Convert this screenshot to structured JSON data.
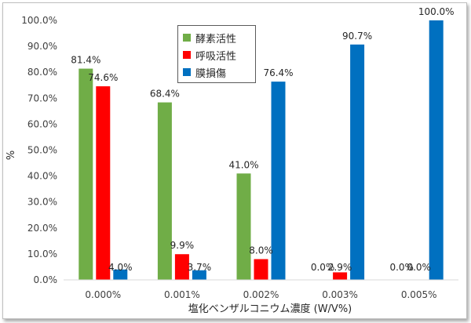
{
  "chart_data": {
    "type": "bar",
    "categories": [
      "0.000%",
      "0.001%",
      "0.002%",
      "0.003%",
      "0.005%"
    ],
    "series": [
      {
        "name": "酵素活性",
        "color": "#70ad47",
        "values": [
          81.4,
          68.4,
          41.0,
          0.0,
          0.0
        ],
        "labels": [
          "81.4%",
          "68.4%",
          "41.0%",
          "0.0%",
          "0.0%"
        ]
      },
      {
        "name": "呼吸活性",
        "color": "#ff0000",
        "values": [
          74.6,
          9.9,
          8.0,
          2.9,
          0.0
        ],
        "labels": [
          "74.6%",
          "9.9%",
          "8.0%",
          "2.9%",
          "0.0%"
        ]
      },
      {
        "name": "膜損傷",
        "color": "#0070c0",
        "values": [
          4.0,
          3.7,
          76.4,
          90.7,
          100.0
        ],
        "labels": [
          "4.0%",
          "3.7%",
          "76.4%",
          "90.7%",
          "100.0%"
        ]
      }
    ],
    "yticks": [
      "0.0%",
      "10.0%",
      "20.0%",
      "30.0%",
      "40.0%",
      "50.0%",
      "60.0%",
      "70.0%",
      "80.0%",
      "90.0%",
      "100.0%"
    ],
    "ylim": [
      0,
      100
    ],
    "ylabel": "%",
    "xlabel": "塩化ベンザルコニウム濃度 (W/V%)",
    "legend_position": "top-center",
    "grid": false
  }
}
